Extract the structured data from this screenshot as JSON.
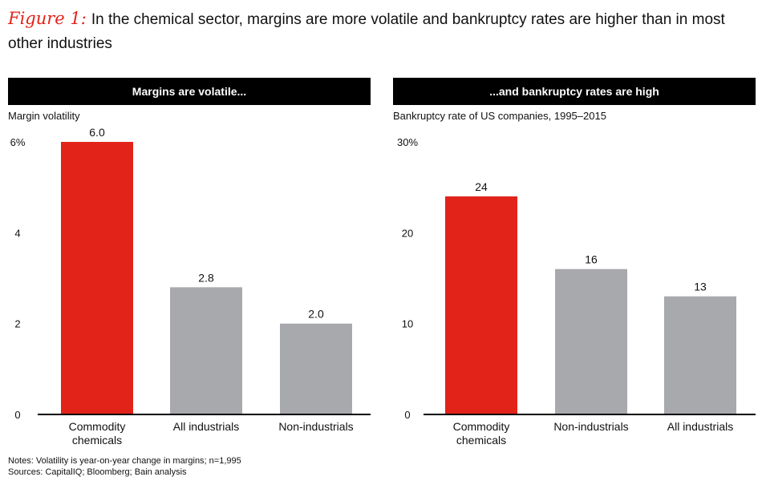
{
  "title": {
    "figure_label": "Figure 1:",
    "text": "In the chemical sector, margins are more volatile and bankruptcy rates are higher than in most other industries"
  },
  "colors": {
    "highlight": "#e2231a",
    "neutral": "#a7a9ac",
    "header_bg": "#000000"
  },
  "chart_data": [
    {
      "type": "bar",
      "title": "Margins are volatile...",
      "ylabel": "Margin volatility",
      "categories": [
        "Commodity chemicals",
        "All industrials",
        "Non-industrials"
      ],
      "values": [
        6.0,
        2.8,
        2.0
      ],
      "value_labels": [
        "6.0",
        "2.8",
        "2.0"
      ],
      "highlight_index": 0,
      "ylim": [
        0,
        6
      ],
      "yticks": [
        0,
        2,
        4,
        6
      ],
      "ytick_labels": [
        "0",
        "2",
        "4",
        "6%"
      ]
    },
    {
      "type": "bar",
      "title": "...and bankruptcy rates are high",
      "ylabel": "Bankruptcy rate of US companies, 1995–2015",
      "categories": [
        "Commodity chemicals",
        "Non-industrials",
        "All industrials"
      ],
      "values": [
        24,
        16,
        13
      ],
      "value_labels": [
        "24",
        "16",
        "13"
      ],
      "highlight_index": 0,
      "ylim": [
        0,
        30
      ],
      "yticks": [
        0,
        10,
        20,
        30
      ],
      "ytick_labels": [
        "0",
        "10",
        "20",
        "30%"
      ]
    }
  ],
  "notes": {
    "line1": "Notes: Volatility is year-on-year change in margins; n=1,995",
    "line2": "Sources: CapitalIQ; Bloomberg; Bain analysis"
  }
}
